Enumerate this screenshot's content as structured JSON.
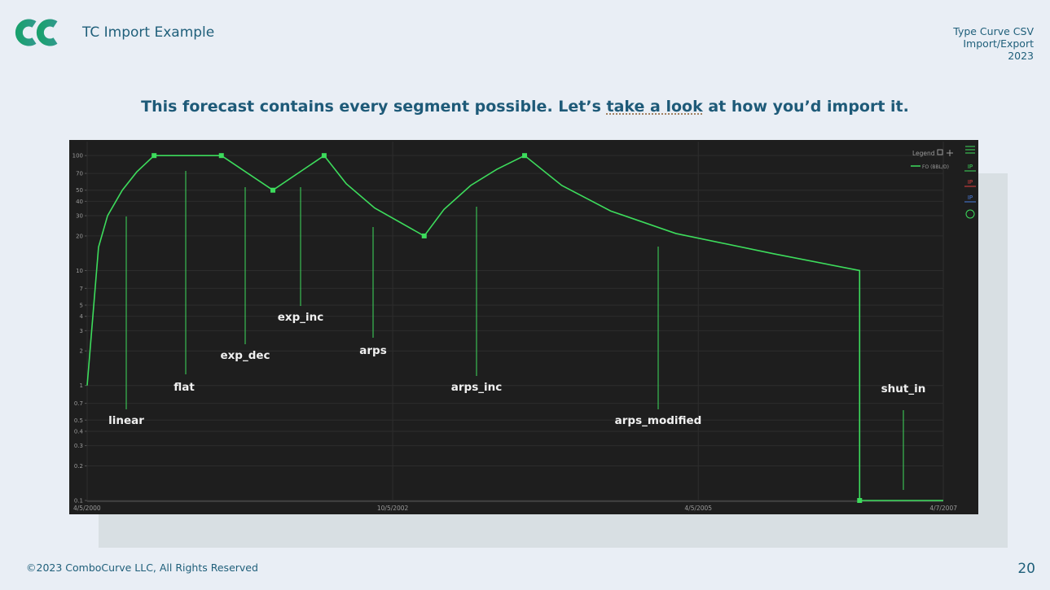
{
  "header": {
    "title": "TC Import Example",
    "side": [
      "Type Curve CSV",
      "Import/Export",
      "2023"
    ]
  },
  "headline": [
    "This forecast contains every segment possible. Let’s ",
    "take a look",
    " at how you’d import it."
  ],
  "footer": {
    "copyright": "©2023 ComboCurve LLC, All Rights Reserved",
    "page": "20"
  },
  "chart_data": {
    "type": "line",
    "log_y": true,
    "grid": true,
    "legend": {
      "title": "Legend",
      "corner": "top-right"
    },
    "toolbar": [
      "IP",
      "IP",
      "IP"
    ],
    "x": [
      "2000-04-05",
      "2000-05-09",
      "2000-06-05",
      "2000-07-19",
      "2000-08-31",
      "2000-10-22",
      "2001-05-11",
      "2001-10-12",
      "2002-03-14",
      "2002-05-19",
      "2002-08-12",
      "2003-01-07",
      "2003-03-07",
      "2003-05-26",
      "2003-08-12",
      "2003-11-03",
      "2004-02-22",
      "2004-07-17",
      "2005-01-28",
      "2005-11-16",
      "2006-07-31",
      "2006-07-31",
      "2007-04-07"
    ],
    "series": [
      {
        "name": "FO (BBL/D)",
        "color": "#3ddc5c",
        "values": [
          1,
          16,
          30,
          50,
          72,
          100,
          100,
          50,
          100,
          57,
          35,
          20,
          34,
          55,
          76,
          100,
          55,
          33,
          21,
          14,
          10,
          0.1,
          0.1
        ]
      }
    ],
    "xlim": [
      "2000-04-05",
      "2007-04-07"
    ],
    "xticks": [
      {
        "value": "2000-04-05",
        "label": "4/5/2000"
      },
      {
        "value": "2002-10-05",
        "label": "10/5/2002"
      },
      {
        "value": "2005-04-05",
        "label": "4/5/2005"
      },
      {
        "value": "2007-04-07",
        "label": "4/7/2007"
      }
    ],
    "ylim": [
      0.1,
      120
    ],
    "yticks": [
      0.1,
      0.2,
      0.3,
      0.4,
      0.5,
      0.7,
      1,
      2,
      3,
      4,
      5,
      7,
      10,
      20,
      30,
      40,
      50,
      70,
      100
    ],
    "annotations": [
      "linear",
      "flat",
      "exp_dec",
      "exp_inc",
      "arps",
      "arps_inc",
      "arps_modified",
      "shut_in"
    ]
  }
}
